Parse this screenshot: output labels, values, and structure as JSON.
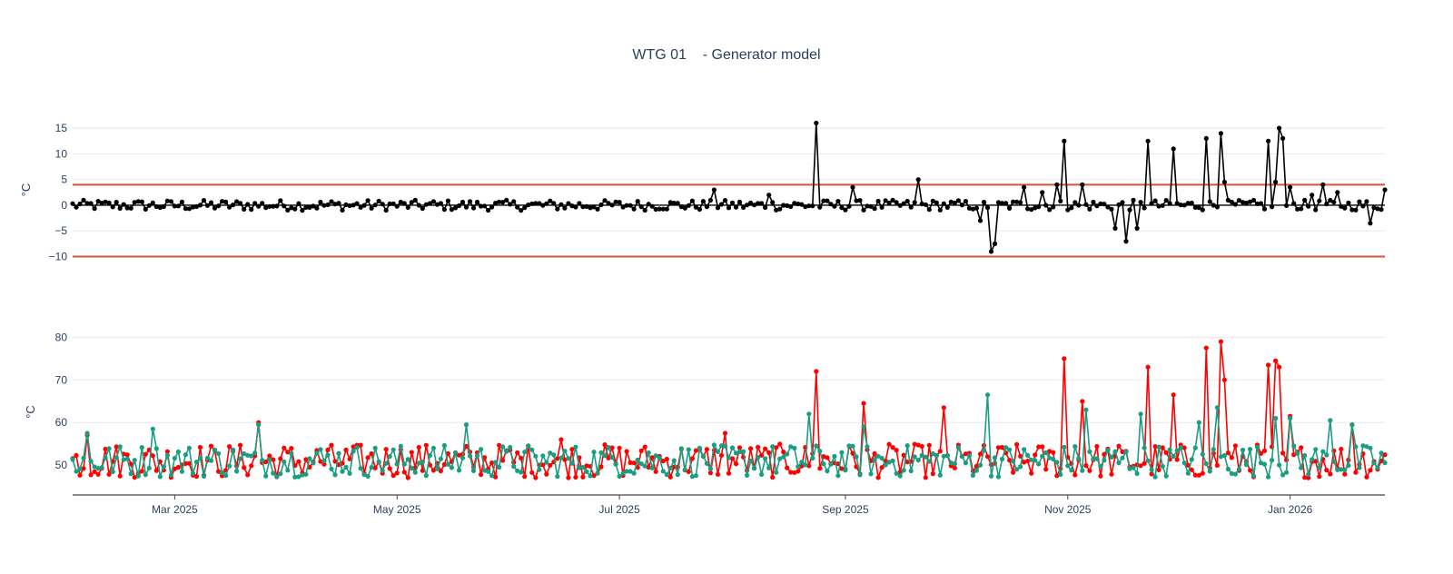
{
  "title": {
    "main": "WTG 01",
    "sub": "- Generator model"
  },
  "colors": {
    "residual": "#000000",
    "threshold": "#d1543a",
    "measured": "#ff0000",
    "model": "#1a9e82",
    "grid": "#e5e8ee",
    "axis": "#444444"
  },
  "chart_data": [
    {
      "type": "line",
      "name": "residual",
      "ylabel": "°C",
      "x_range": [
        "2025-02-01",
        "2026-01-27"
      ],
      "ylim": [
        -11.5,
        17.5
      ],
      "yticks": [
        -10,
        -5,
        0,
        5,
        10,
        15
      ],
      "ytick_labels": [
        "−10",
        "−5",
        "0",
        "5",
        "10",
        "15"
      ],
      "thresholds": [
        4,
        -10
      ],
      "zero_line": true,
      "grid": true,
      "series": [
        {
          "mode": "lines+markers",
          "color": "#000000",
          "base": 0,
          "noise": 1.0,
          "spikes": [
            [
              "2025-07-27",
              3.0
            ],
            [
              "2025-08-11",
              2.0
            ],
            [
              "2025-08-24",
              16.0
            ],
            [
              "2025-09-03",
              3.5
            ],
            [
              "2025-09-21",
              5.0
            ],
            [
              "2025-10-08",
              -3.0
            ],
            [
              "2025-10-11",
              -9.0
            ],
            [
              "2025-10-12",
              -7.5
            ],
            [
              "2025-10-20",
              3.5
            ],
            [
              "2025-10-25",
              2.5
            ],
            [
              "2025-10-29",
              4.0
            ],
            [
              "2025-10-31",
              12.5
            ],
            [
              "2025-11-05",
              4.0
            ],
            [
              "2025-11-14",
              -4.5
            ],
            [
              "2025-11-17",
              -7.0
            ],
            [
              "2025-11-20",
              -4.5
            ],
            [
              "2025-11-23",
              12.5
            ],
            [
              "2025-11-30",
              11.0
            ],
            [
              "2025-12-09",
              13.0
            ],
            [
              "2025-12-13",
              14.0
            ],
            [
              "2025-12-14",
              4.5
            ],
            [
              "2025-12-26",
              12.5
            ],
            [
              "2025-12-28",
              4.5
            ],
            [
              "2025-12-29",
              15.0
            ],
            [
              "2025-12-30",
              13.0
            ],
            [
              "2026-01-01",
              3.5
            ],
            [
              "2026-01-10",
              4.0
            ],
            [
              "2026-01-14",
              2.5
            ],
            [
              "2026-01-23",
              -3.5
            ],
            [
              "2026-01-07",
              2.0
            ],
            [
              "2026-01-27",
              3.0
            ]
          ]
        }
      ]
    },
    {
      "type": "line",
      "name": "temperatures",
      "ylabel": "°C",
      "x_range": [
        "2025-02-01",
        "2026-01-27"
      ],
      "ylim": [
        43,
        82
      ],
      "yticks": [
        50,
        60,
        70,
        80
      ],
      "ytick_labels": [
        "50",
        "60",
        "70",
        "80"
      ],
      "grid": true,
      "x_ticks": [
        "2025-03-01",
        "2025-05-01",
        "2025-07-01",
        "2025-09-01",
        "2025-11-01",
        "2026-01-01"
      ],
      "x_tick_labels": [
        "Mar 2025",
        "May 2025",
        "Jul 2025",
        "Sep 2025",
        "Nov 2025",
        "Jan 2026"
      ],
      "series": [
        {
          "mode": "lines+markers",
          "color": "#ff0000",
          "base": 51,
          "noise": 4.0,
          "spikes": [
            [
              "2025-02-05",
              57
            ],
            [
              "2025-03-24",
              60
            ],
            [
              "2025-06-15",
              56
            ],
            [
              "2025-07-30",
              57.5
            ],
            [
              "2025-08-24",
              72
            ],
            [
              "2025-09-06",
              64.5
            ],
            [
              "2025-09-28",
              63.5
            ],
            [
              "2025-10-31",
              75
            ],
            [
              "2025-11-05",
              65
            ],
            [
              "2025-11-23",
              73
            ],
            [
              "2025-11-30",
              66.5
            ],
            [
              "2025-12-09",
              77.5
            ],
            [
              "2025-12-13",
              79
            ],
            [
              "2025-12-14",
              70
            ],
            [
              "2025-12-26",
              73.5
            ],
            [
              "2025-12-28",
              74.5
            ],
            [
              "2025-12-29",
              73
            ],
            [
              "2026-01-01",
              61.5
            ],
            [
              "2026-01-18",
              59.5
            ]
          ]
        },
        {
          "mode": "lines+markers",
          "color": "#1a9e82",
          "base": 51,
          "noise": 4.0,
          "spikes": [
            [
              "2025-02-05",
              57.5
            ],
            [
              "2025-02-23",
              58.5
            ],
            [
              "2025-03-24",
              59.5
            ],
            [
              "2025-05-20",
              59.5
            ],
            [
              "2025-08-22",
              62
            ],
            [
              "2025-09-06",
              59
            ],
            [
              "2025-10-10",
              66.5
            ],
            [
              "2025-11-06",
              63
            ],
            [
              "2025-11-21",
              62
            ],
            [
              "2025-12-07",
              60
            ],
            [
              "2025-12-12",
              63.5
            ],
            [
              "2025-12-28",
              61
            ],
            [
              "2026-01-01",
              61
            ],
            [
              "2026-01-12",
              60.5
            ],
            [
              "2026-01-18",
              59.5
            ]
          ]
        }
      ]
    }
  ]
}
